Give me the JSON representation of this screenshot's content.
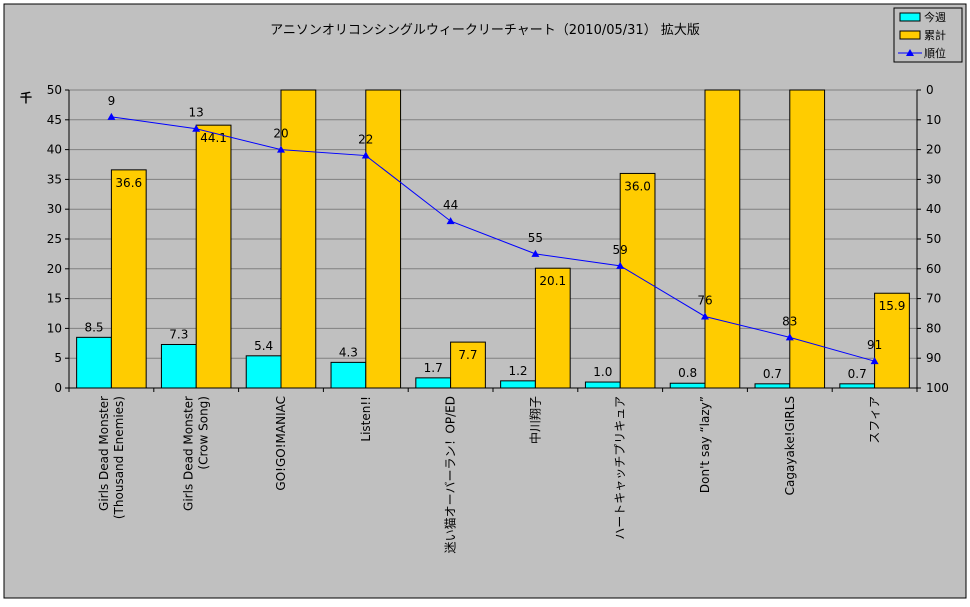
{
  "chart_data": {
    "type": "bar+line",
    "title": "アニソンオリコンシングルウィークリーチャート（2010/05/31） 拡大版",
    "ylabel_left": "千",
    "ylim_left": [
      0,
      50
    ],
    "yticks_left": [
      "0",
      "5",
      "10",
      "15",
      "20",
      "25",
      "30",
      "35",
      "40",
      "45",
      "50"
    ],
    "ylim_right": [
      100,
      0
    ],
    "yticks_right": [
      "0",
      "10",
      "20",
      "30",
      "40",
      "50",
      "60",
      "70",
      "80",
      "90",
      "100"
    ],
    "grid": true,
    "legend_position": "top-right",
    "categories": [
      "Girls Dead Monster\n(Thousand Enemies)",
      "Girls Dead Monster\n(Crow Song)",
      "GO!GO!MANIAC",
      "Listen!!",
      "迷い猫オーバーラン！OP/ED",
      "中川翔子",
      "ハートキャッチプリキュア",
      "Don't say “lazy”",
      "Cagayake!GIRLS",
      "スフィア"
    ],
    "series": [
      {
        "name": "今週",
        "type": "bar",
        "color": "#00ffff",
        "values": [
          8.5,
          7.3,
          5.4,
          4.3,
          1.7,
          1.2,
          1.0,
          0.8,
          0.7,
          0.7
        ],
        "labels": [
          "8.5",
          "7.3",
          "5.4",
          "4.3",
          "1.7",
          "1.2",
          "1.0",
          "0.8",
          "0.7",
          "0.7"
        ]
      },
      {
        "name": "累計",
        "type": "bar",
        "color": "#ffcc00",
        "values": [
          36.6,
          44.1,
          null,
          null,
          7.7,
          20.1,
          36.0,
          null,
          null,
          15.9
        ],
        "labels": [
          "36.6",
          "44.1",
          "",
          "",
          "7.7",
          "20.1",
          "36.0",
          "",
          "",
          "15.9"
        ],
        "note_null": "exceeds axis max (50)"
      },
      {
        "name": "順位",
        "type": "line",
        "axis": "right",
        "color": "#0000ff",
        "marker": "triangle",
        "values": [
          9,
          13,
          20,
          22,
          44,
          55,
          59,
          76,
          83,
          91
        ],
        "labels": [
          "9",
          "13",
          "20",
          "22",
          "44",
          "55",
          "59",
          "76",
          "83",
          "91"
        ]
      }
    ]
  }
}
